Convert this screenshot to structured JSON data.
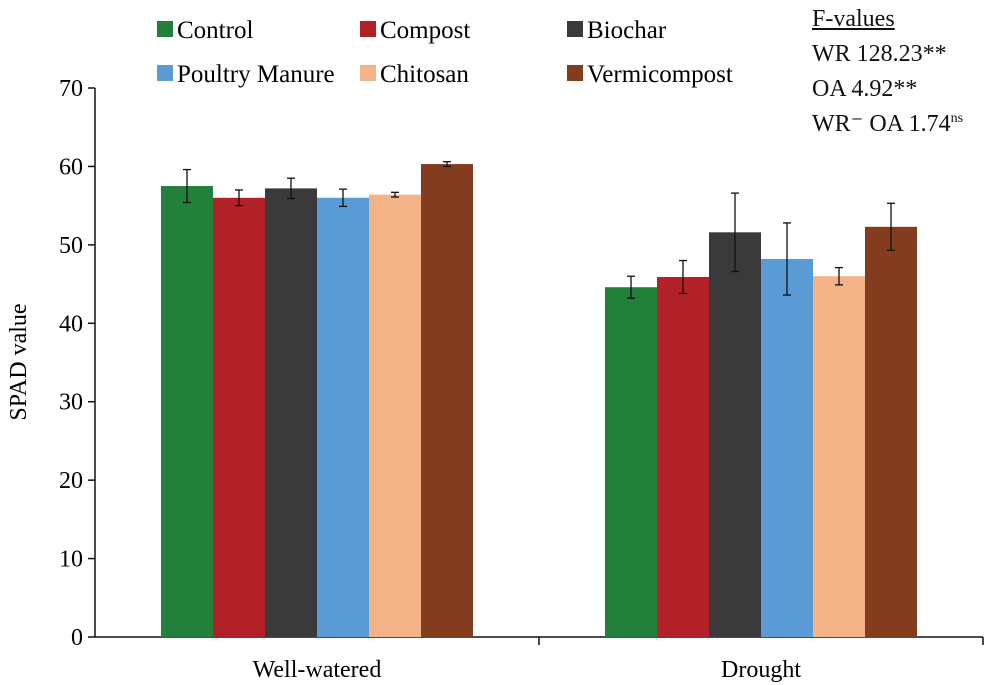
{
  "chart_data": {
    "type": "bar",
    "title": "",
    "xlabel": "",
    "ylabel": "SPAD value",
    "ylim": [
      0,
      70
    ],
    "yticks": [
      0,
      10,
      20,
      30,
      40,
      50,
      60,
      70
    ],
    "categories": [
      "Well-watered",
      "Drought"
    ],
    "series": [
      {
        "name": "Control",
        "color": "#23803b",
        "values": [
          57.5,
          44.6
        ],
        "errors": [
          2.1,
          1.4
        ]
      },
      {
        "name": "Compost",
        "color": "#b22028",
        "values": [
          56.0,
          45.9
        ],
        "errors": [
          1.0,
          2.1
        ]
      },
      {
        "name": "Biochar",
        "color": "#3a3a3a",
        "values": [
          57.2,
          51.6
        ],
        "errors": [
          1.3,
          5.0
        ]
      },
      {
        "name": "Poultry Manure",
        "color": "#5b9bd5",
        "values": [
          56.0,
          48.2
        ],
        "errors": [
          1.1,
          4.6
        ]
      },
      {
        "name": "Chitosan",
        "color": "#f4b287",
        "values": [
          56.4,
          46.0
        ],
        "errors": [
          0.3,
          1.1
        ]
      },
      {
        "name": "Vermicompost",
        "color": "#833c1d",
        "values": [
          60.3,
          52.3
        ],
        "errors": [
          0.3,
          3.0
        ]
      }
    ],
    "legend_position": "top"
  },
  "fvalues": {
    "heading": "F-values",
    "line1": "WR 128.23**",
    "line2": "OA 4.92**",
    "line3_main": "WR⁻ OA 1.74",
    "line3_sup": "ns"
  }
}
